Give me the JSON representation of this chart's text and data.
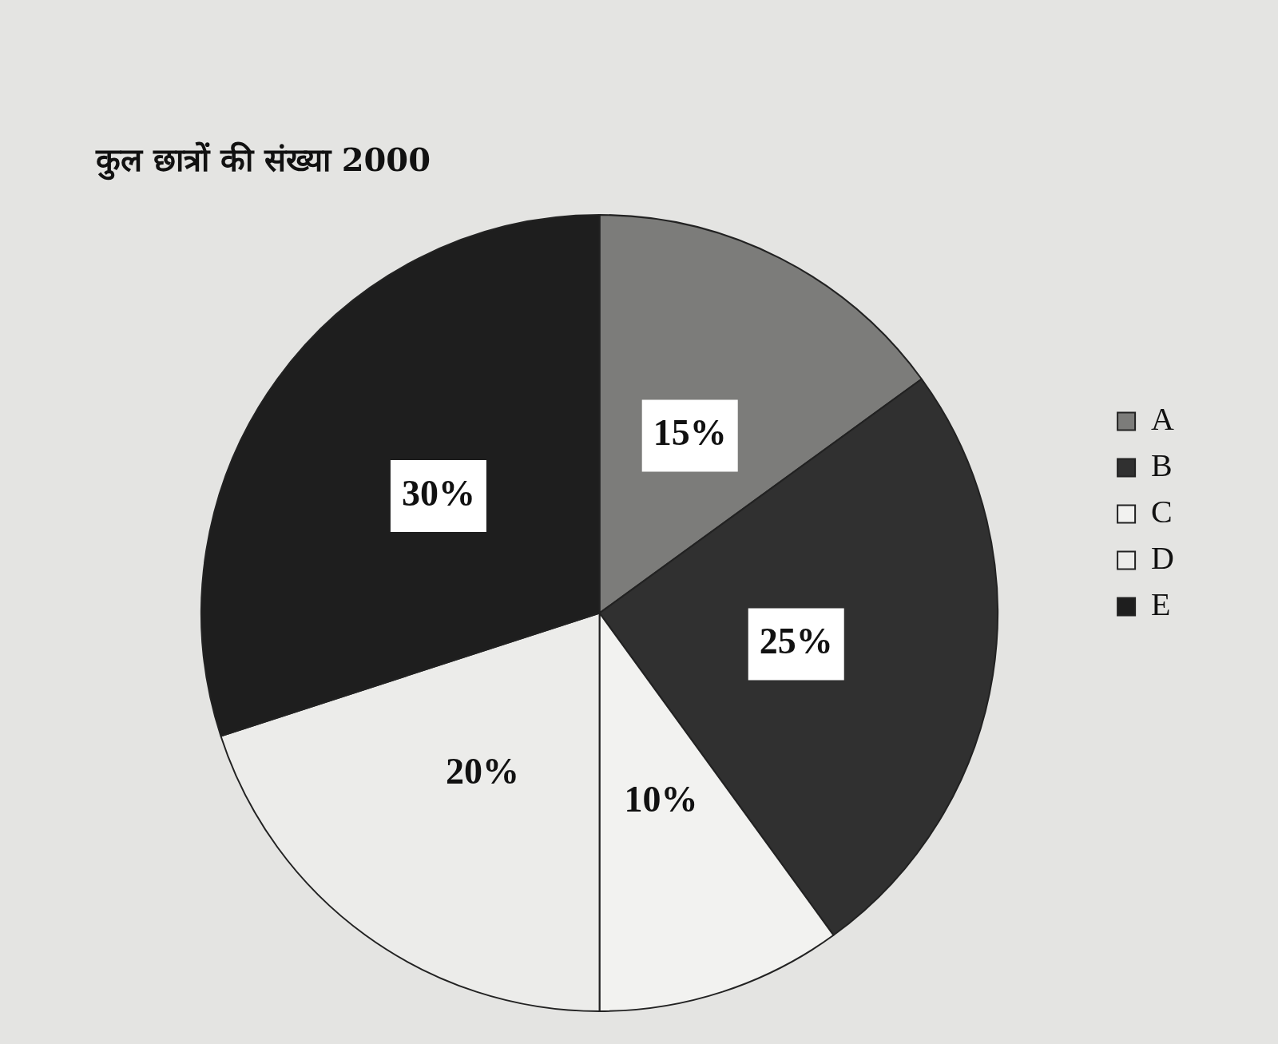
{
  "chart_data": {
    "type": "pie",
    "title": "कुल छात्रों की संख्या 2000",
    "categories": [
      "A",
      "B",
      "C",
      "D",
      "E"
    ],
    "values": [
      15,
      25,
      10,
      20,
      30
    ],
    "value_labels": [
      "15%",
      "25%",
      "10%",
      "20%",
      "30%"
    ],
    "colors": [
      "#7c7c7a",
      "#303030",
      "#f2f2f0",
      "#ececea",
      "#1e1e1e"
    ],
    "legend": "right"
  }
}
